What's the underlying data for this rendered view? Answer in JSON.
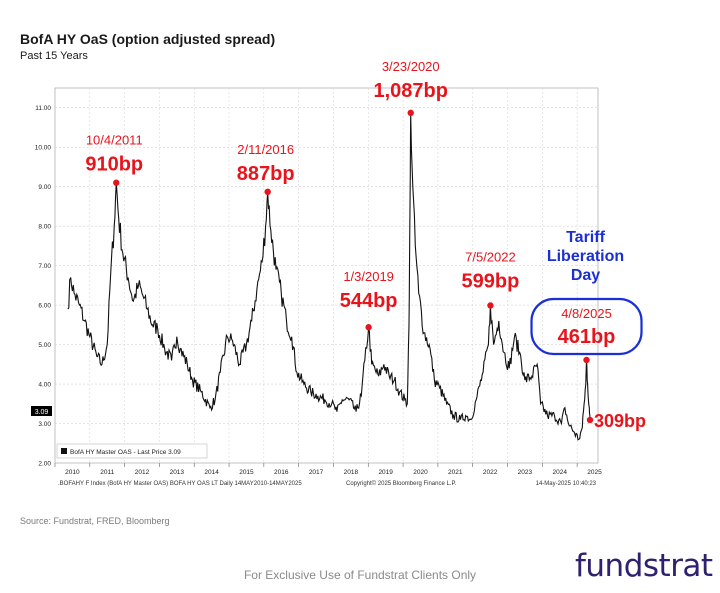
{
  "header": {
    "title": "BofA HY OaS (option adjusted spread)",
    "subtitle": "Past 15 Years"
  },
  "footer": {
    "source": "Source: Fundstrat, FRED, Bloomberg",
    "disclaimer": "For Exclusive Use of Fundstrat Clients Only",
    "brand": "fundstrat"
  },
  "chart_data": {
    "type": "line",
    "ylim": [
      2.0,
      11.5
    ],
    "y_ticks": [
      "2.00",
      "3.00",
      "4.00",
      "5.00",
      "6.00",
      "7.00",
      "8.00",
      "9.00",
      "10.00",
      "11.00"
    ],
    "x_ticks": [
      "2010",
      "2011",
      "2012",
      "2013",
      "2014",
      "2015",
      "2016",
      "2017",
      "2018",
      "2019",
      "2020",
      "2021",
      "2022",
      "2023",
      "2024",
      "2025"
    ],
    "legend": "BofA HY Master OAS - Last Price 3.09",
    "last_price_label": "3.09",
    "footer_left": ".BOFAHY F Index (BofA HY Master OAS) BOFA HY OAS LT  Daily 14MAY2010-14MAY2025",
    "footer_mid": "Copyright© 2025 Bloomberg Finance L.P.",
    "footer_right": "14-May-2025 10:40:23",
    "series": [
      {
        "values": [
          [
            2010.37,
            5.9
          ],
          [
            2010.45,
            6.7
          ],
          [
            2010.55,
            6.3
          ],
          [
            2010.7,
            6.0
          ],
          [
            2010.85,
            5.6
          ],
          [
            2011.0,
            5.2
          ],
          [
            2011.2,
            4.7
          ],
          [
            2011.35,
            4.5
          ],
          [
            2011.5,
            5.0
          ],
          [
            2011.6,
            6.8
          ],
          [
            2011.7,
            8.0
          ],
          [
            2011.76,
            9.1
          ],
          [
            2011.83,
            8.2
          ],
          [
            2011.95,
            7.3
          ],
          [
            2012.1,
            6.7
          ],
          [
            2012.25,
            6.1
          ],
          [
            2012.4,
            6.5
          ],
          [
            2012.5,
            6.3
          ],
          [
            2012.65,
            5.9
          ],
          [
            2012.8,
            5.5
          ],
          [
            2012.95,
            5.4
          ],
          [
            2013.15,
            4.9
          ],
          [
            2013.35,
            4.6
          ],
          [
            2013.5,
            5.2
          ],
          [
            2013.6,
            4.9
          ],
          [
            2013.8,
            4.5
          ],
          [
            2013.95,
            4.1
          ],
          [
            2014.2,
            3.8
          ],
          [
            2014.45,
            3.4
          ],
          [
            2014.6,
            3.6
          ],
          [
            2014.75,
            4.3
          ],
          [
            2014.95,
            5.2
          ],
          [
            2015.1,
            5.1
          ],
          [
            2015.3,
            4.5
          ],
          [
            2015.5,
            5.0
          ],
          [
            2015.65,
            5.6
          ],
          [
            2015.8,
            6.4
          ],
          [
            2015.95,
            7.1
          ],
          [
            2016.05,
            8.0
          ],
          [
            2016.11,
            8.87
          ],
          [
            2016.2,
            7.9
          ],
          [
            2016.35,
            6.9
          ],
          [
            2016.5,
            6.3
          ],
          [
            2016.65,
            5.6
          ],
          [
            2016.8,
            5.2
          ],
          [
            2016.95,
            4.3
          ],
          [
            2017.15,
            4.0
          ],
          [
            2017.35,
            3.8
          ],
          [
            2017.55,
            3.7
          ],
          [
            2017.75,
            3.6
          ],
          [
            2017.95,
            3.5
          ],
          [
            2018.1,
            3.3
          ],
          [
            2018.25,
            3.6
          ],
          [
            2018.45,
            3.6
          ],
          [
            2018.65,
            3.3
          ],
          [
            2018.8,
            3.7
          ],
          [
            2018.9,
            4.6
          ],
          [
            2019.01,
            5.44
          ],
          [
            2019.1,
            4.5
          ],
          [
            2019.3,
            4.2
          ],
          [
            2019.45,
            4.5
          ],
          [
            2019.6,
            4.2
          ],
          [
            2019.75,
            4.1
          ],
          [
            2019.9,
            3.8
          ],
          [
            2020.05,
            3.6
          ],
          [
            2020.12,
            3.5
          ],
          [
            2020.17,
            5.5
          ],
          [
            2020.2,
            8.5
          ],
          [
            2020.22,
            10.87
          ],
          [
            2020.28,
            9.0
          ],
          [
            2020.35,
            7.5
          ],
          [
            2020.45,
            6.3
          ],
          [
            2020.6,
            5.3
          ],
          [
            2020.75,
            5.0
          ],
          [
            2020.9,
            4.1
          ],
          [
            2021.05,
            3.9
          ],
          [
            2021.25,
            3.5
          ],
          [
            2021.45,
            3.2
          ],
          [
            2021.65,
            3.1
          ],
          [
            2021.8,
            3.2
          ],
          [
            2021.95,
            3.1
          ],
          [
            2022.1,
            3.6
          ],
          [
            2022.3,
            4.3
          ],
          [
            2022.45,
            5.0
          ],
          [
            2022.51,
            5.99
          ],
          [
            2022.6,
            5.0
          ],
          [
            2022.75,
            5.6
          ],
          [
            2022.9,
            4.8
          ],
          [
            2023.05,
            4.4
          ],
          [
            2023.2,
            5.2
          ],
          [
            2023.35,
            4.8
          ],
          [
            2023.5,
            4.1
          ],
          [
            2023.7,
            4.2
          ],
          [
            2023.85,
            4.5
          ],
          [
            2023.95,
            3.5
          ],
          [
            2024.15,
            3.2
          ],
          [
            2024.35,
            3.2
          ],
          [
            2024.55,
            3.0
          ],
          [
            2024.65,
            3.4
          ],
          [
            2024.75,
            3.0
          ],
          [
            2024.9,
            2.8
          ],
          [
            2025.05,
            2.6
          ],
          [
            2025.15,
            2.9
          ],
          [
            2025.2,
            3.5
          ],
          [
            2025.25,
            4.0
          ],
          [
            2025.27,
            4.61
          ],
          [
            2025.3,
            4.0
          ],
          [
            2025.35,
            3.4
          ],
          [
            2025.37,
            3.09
          ]
        ]
      }
    ],
    "annotations": [
      {
        "date": "10/4/2011",
        "value": "910bp",
        "x": 2011.76,
        "y": 9.1,
        "style": "red"
      },
      {
        "date": "2/11/2016",
        "value": "887bp",
        "x": 2016.11,
        "y": 8.87,
        "style": "red"
      },
      {
        "date": "1/3/2019",
        "value": "544bp",
        "x": 2019.01,
        "y": 5.44,
        "style": "red"
      },
      {
        "date": "3/23/2020",
        "value": "1,087bp",
        "x": 2020.22,
        "y": 10.87,
        "style": "red"
      },
      {
        "date": "7/5/2022",
        "value": "599bp",
        "x": 2022.51,
        "y": 5.99,
        "style": "red"
      },
      {
        "date": "4/8/2025",
        "value": "461bp",
        "x": 2025.27,
        "y": 4.61,
        "style": "boxed"
      },
      {
        "date": "",
        "value": "309bp",
        "x": 2025.37,
        "y": 3.09,
        "style": "red"
      }
    ],
    "callout": [
      "Tariff",
      "Liberation",
      "Day"
    ],
    "colors": {
      "line": "#111111",
      "accent": "#e8141c",
      "callout": "#1a2fd6",
      "brand": "#2e2270"
    }
  }
}
